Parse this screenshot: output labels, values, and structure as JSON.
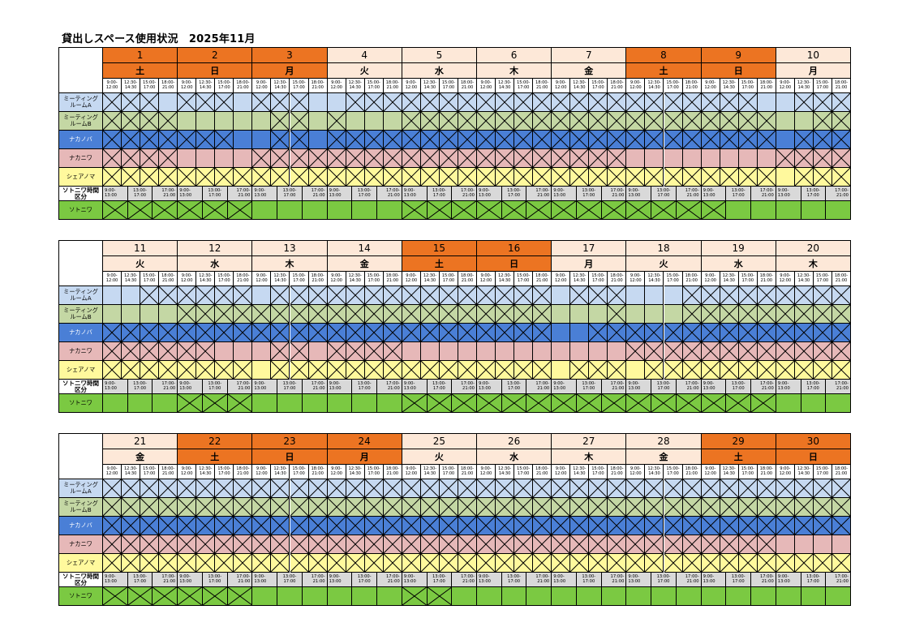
{
  "title": "貸出しスペース使用状況　2025年11月",
  "time_slots": [
    "9:00-\n12:00",
    "12:30-\n14:30",
    "15:00-\n17:00",
    "18:00-\n21:00"
  ],
  "sotoniwa_slots": [
    "9:00-\n13:00",
    "13:00-\n17:00",
    "17:00-\n21:00"
  ],
  "rooms": [
    {
      "id": "ma",
      "label": "ミーティング\nルームA",
      "color": "#c6d9f1",
      "slots": 4
    },
    {
      "id": "mb",
      "label": "ミーティング\nルームB",
      "color": "#c4d7a4",
      "slots": 4
    },
    {
      "id": "nakanoba",
      "label": "ナカノバ",
      "color": "#4a7fd6",
      "slots": 4
    },
    {
      "id": "nakaniwa",
      "label": "ナカニワ",
      "color": "#e6b8b8",
      "slots": 4
    },
    {
      "id": "sheanoma",
      "label": "シェアノマ",
      "color": "#fff99d",
      "slots": 4
    },
    {
      "id": "sotoniwa",
      "label": "ソトニワ",
      "color": "#7bc942",
      "slots": 3
    }
  ],
  "sotoniwa_header_label": "ソトニワ時間\n区分",
  "colors": {
    "weekday": "#fde8d8",
    "weekend": "#ec7422",
    "slot_bg": "#ffffff",
    "sotoniwa_slot_bg": "#d9d9d9",
    "border": "#000000"
  },
  "days": [
    {
      "day": "1",
      "dow": "土",
      "holiday": true,
      "booked": {
        "ma": [
          1,
          1,
          1,
          0
        ],
        "mb": [
          1,
          1,
          1,
          1
        ],
        "nakanoba": [
          1,
          1,
          1,
          1
        ],
        "nakaniwa": [
          1,
          1,
          1,
          1
        ],
        "sheanoma": [
          1,
          1,
          1,
          1
        ],
        "sotoniwa": [
          1,
          1,
          1
        ]
      }
    },
    {
      "day": "2",
      "dow": "日",
      "holiday": true,
      "booked": {
        "ma": [
          1,
          1,
          1,
          0
        ],
        "mb": [
          0,
          0,
          0,
          0
        ],
        "nakanoba": [
          1,
          1,
          1,
          0
        ],
        "nakaniwa": [
          0,
          0,
          0,
          0
        ],
        "sheanoma": [
          1,
          1,
          1,
          1
        ],
        "sotoniwa": [
          1,
          1,
          1
        ]
      }
    },
    {
      "day": "3",
      "dow": "月",
      "holiday": true,
      "booked": {
        "ma": [
          1,
          1,
          1,
          0
        ],
        "mb": [
          0,
          1,
          1,
          0
        ],
        "nakanoba": [
          0,
          1,
          1,
          0
        ],
        "nakaniwa": [
          1,
          1,
          1,
          1
        ],
        "sheanoma": [
          1,
          1,
          1,
          1
        ],
        "sotoniwa": [
          0,
          0,
          0
        ]
      }
    },
    {
      "day": "4",
      "dow": "火",
      "holiday": false,
      "booked": {
        "ma": [
          0,
          1,
          1,
          1
        ],
        "mb": [
          1,
          0,
          0,
          0
        ],
        "nakanoba": [
          1,
          1,
          1,
          1
        ],
        "nakaniwa": [
          1,
          1,
          1,
          1
        ],
        "sheanoma": [
          1,
          1,
          1,
          1
        ],
        "sotoniwa": [
          0,
          0,
          0
        ]
      }
    },
    {
      "day": "5",
      "dow": "水",
      "holiday": false,
      "booked": {
        "ma": [
          1,
          1,
          1,
          1
        ],
        "mb": [
          1,
          1,
          1,
          1
        ],
        "nakanoba": [
          1,
          1,
          1,
          1
        ],
        "nakaniwa": [
          1,
          1,
          1,
          1
        ],
        "sheanoma": [
          1,
          1,
          1,
          1
        ],
        "sotoniwa": [
          1,
          1,
          1
        ]
      }
    },
    {
      "day": "6",
      "dow": "木",
      "holiday": false,
      "booked": {
        "ma": [
          1,
          1,
          1,
          1
        ],
        "mb": [
          1,
          1,
          1,
          1
        ],
        "nakanoba": [
          1,
          1,
          1,
          1
        ],
        "nakaniwa": [
          1,
          1,
          1,
          1
        ],
        "sheanoma": [
          1,
          1,
          1,
          1
        ],
        "sotoniwa": [
          1,
          1,
          1
        ]
      }
    },
    {
      "day": "7",
      "dow": "金",
      "holiday": false,
      "booked": {
        "ma": [
          1,
          1,
          1,
          1
        ],
        "mb": [
          1,
          1,
          1,
          1
        ],
        "nakanoba": [
          1,
          1,
          1,
          1
        ],
        "nakaniwa": [
          1,
          1,
          1,
          1
        ],
        "sheanoma": [
          1,
          1,
          1,
          1
        ],
        "sotoniwa": [
          1,
          1,
          1
        ]
      }
    },
    {
      "day": "8",
      "dow": "土",
      "holiday": true,
      "booked": {
        "ma": [
          1,
          1,
          1,
          1
        ],
        "mb": [
          1,
          1,
          1,
          1
        ],
        "nakanoba": [
          1,
          1,
          1,
          1
        ],
        "nakaniwa": [
          0,
          0,
          0,
          0
        ],
        "sheanoma": [
          1,
          1,
          1,
          1
        ],
        "sotoniwa": [
          1,
          1,
          1
        ]
      }
    },
    {
      "day": "9",
      "dow": "日",
      "holiday": true,
      "booked": {
        "ma": [
          1,
          1,
          1,
          0
        ],
        "mb": [
          1,
          1,
          1,
          1
        ],
        "nakanoba": [
          1,
          1,
          1,
          1
        ],
        "nakaniwa": [
          0,
          0,
          0,
          0
        ],
        "sheanoma": [
          1,
          1,
          1,
          1
        ],
        "sotoniwa": [
          1,
          0,
          0
        ]
      }
    },
    {
      "day": "10",
      "dow": "月",
      "holiday": false,
      "booked": {
        "ma": [
          0,
          1,
          1,
          1
        ],
        "mb": [
          0,
          0,
          1,
          1
        ],
        "nakanoba": [
          0,
          1,
          1,
          1
        ],
        "nakaniwa": [
          1,
          1,
          1,
          1
        ],
        "sheanoma": [
          0,
          1,
          1,
          1
        ],
        "sotoniwa": [
          0,
          0,
          0
        ]
      }
    },
    {
      "day": "11",
      "dow": "火",
      "holiday": false,
      "booked": {
        "ma": [
          0,
          0,
          1,
          1
        ],
        "mb": [
          0,
          0,
          0,
          0
        ],
        "nakanoba": [
          1,
          1,
          1,
          1
        ],
        "nakaniwa": [
          1,
          1,
          1,
          1
        ],
        "sheanoma": [
          1,
          1,
          1,
          1
        ],
        "sotoniwa": [
          0,
          0,
          0
        ]
      }
    },
    {
      "day": "12",
      "dow": "水",
      "holiday": false,
      "booked": {
        "ma": [
          1,
          1,
          1,
          1
        ],
        "mb": [
          1,
          1,
          1,
          1
        ],
        "nakanoba": [
          1,
          1,
          1,
          1
        ],
        "nakaniwa": [
          1,
          1,
          0,
          0
        ],
        "sheanoma": [
          1,
          1,
          1,
          1
        ],
        "sotoniwa": [
          1,
          1,
          1
        ]
      }
    },
    {
      "day": "13",
      "dow": "木",
      "holiday": false,
      "booked": {
        "ma": [
          0,
          1,
          1,
          1
        ],
        "mb": [
          1,
          1,
          1,
          1
        ],
        "nakanoba": [
          1,
          1,
          1,
          1
        ],
        "nakaniwa": [
          0,
          1,
          1,
          0
        ],
        "sheanoma": [
          0,
          1,
          1,
          1
        ],
        "sotoniwa": [
          0,
          0,
          0
        ]
      }
    },
    {
      "day": "14",
      "dow": "金",
      "holiday": false,
      "booked": {
        "ma": [
          1,
          1,
          1,
          1
        ],
        "mb": [
          1,
          1,
          1,
          1
        ],
        "nakanoba": [
          1,
          1,
          1,
          1
        ],
        "nakaniwa": [
          1,
          1,
          1,
          1
        ],
        "sheanoma": [
          1,
          1,
          1,
          1
        ],
        "sotoniwa": [
          0,
          0,
          0
        ]
      }
    },
    {
      "day": "15",
      "dow": "土",
      "holiday": true,
      "booked": {
        "ma": [
          1,
          1,
          1,
          1
        ],
        "mb": [
          1,
          1,
          1,
          1
        ],
        "nakanoba": [
          1,
          1,
          1,
          1
        ],
        "nakaniwa": [
          0,
          0,
          0,
          0
        ],
        "sheanoma": [
          1,
          1,
          1,
          1
        ],
        "sotoniwa": [
          1,
          1,
          1
        ]
      }
    },
    {
      "day": "16",
      "dow": "日",
      "holiday": true,
      "booked": {
        "ma": [
          1,
          1,
          1,
          1
        ],
        "mb": [
          1,
          1,
          1,
          1
        ],
        "nakanoba": [
          1,
          1,
          1,
          1
        ],
        "nakaniwa": [
          0,
          0,
          0,
          0
        ],
        "sheanoma": [
          1,
          1,
          1,
          1
        ],
        "sotoniwa": [
          1,
          1,
          1
        ]
      }
    },
    {
      "day": "17",
      "dow": "月",
      "holiday": false,
      "booked": {
        "ma": [
          0,
          1,
          1,
          1
        ],
        "mb": [
          0,
          0,
          0,
          1
        ],
        "nakanoba": [
          0,
          0,
          1,
          1
        ],
        "nakaniwa": [
          0,
          0,
          0,
          0
        ],
        "sheanoma": [
          0,
          1,
          1,
          1
        ],
        "sotoniwa": [
          1,
          1,
          1
        ]
      }
    },
    {
      "day": "18",
      "dow": "火",
      "holiday": false,
      "booked": {
        "ma": [
          0,
          0,
          0,
          1
        ],
        "mb": [
          0,
          0,
          0,
          1
        ],
        "nakanoba": [
          1,
          1,
          1,
          1
        ],
        "nakaniwa": [
          1,
          1,
          1,
          1
        ],
        "sheanoma": [
          0,
          1,
          1,
          1
        ],
        "sotoniwa": [
          1,
          1,
          1
        ]
      }
    },
    {
      "day": "19",
      "dow": "水",
      "holiday": false,
      "booked": {
        "ma": [
          1,
          1,
          1,
          1
        ],
        "mb": [
          1,
          1,
          1,
          1
        ],
        "nakanoba": [
          1,
          1,
          1,
          1
        ],
        "nakaniwa": [
          1,
          1,
          1,
          1
        ],
        "sheanoma": [
          1,
          1,
          1,
          1
        ],
        "sotoniwa": [
          1,
          1,
          1
        ]
      }
    },
    {
      "day": "20",
      "dow": "木",
      "holiday": false,
      "booked": {
        "ma": [
          1,
          1,
          1,
          1
        ],
        "mb": [
          1,
          1,
          1,
          1
        ],
        "nakanoba": [
          1,
          1,
          1,
          1
        ],
        "nakaniwa": [
          1,
          1,
          1,
          1
        ],
        "sheanoma": [
          1,
          1,
          1,
          1
        ],
        "sotoniwa": [
          0,
          0,
          0
        ]
      }
    },
    {
      "day": "21",
      "dow": "金",
      "holiday": false,
      "booked": {
        "ma": [
          1,
          1,
          1,
          1
        ],
        "mb": [
          1,
          1,
          1,
          1
        ],
        "nakanoba": [
          1,
          1,
          1,
          1
        ],
        "nakaniwa": [
          1,
          1,
          1,
          1
        ],
        "sheanoma": [
          1,
          1,
          1,
          1
        ],
        "sotoniwa": [
          1,
          1,
          1
        ]
      }
    },
    {
      "day": "22",
      "dow": "土",
      "holiday": true,
      "booked": {
        "ma": [
          1,
          1,
          1,
          1
        ],
        "mb": [
          1,
          1,
          1,
          1
        ],
        "nakanoba": [
          1,
          1,
          1,
          1
        ],
        "nakaniwa": [
          1,
          1,
          1,
          1
        ],
        "sheanoma": [
          1,
          1,
          1,
          1
        ],
        "sotoniwa": [
          1,
          1,
          1
        ]
      }
    },
    {
      "day": "23",
      "dow": "日",
      "holiday": true,
      "booked": {
        "ma": [
          1,
          1,
          1,
          1
        ],
        "mb": [
          1,
          1,
          1,
          1
        ],
        "nakanoba": [
          1,
          1,
          1,
          1
        ],
        "nakaniwa": [
          1,
          1,
          1,
          1
        ],
        "sheanoma": [
          1,
          1,
          1,
          1
        ],
        "sotoniwa": [
          0,
          0,
          0
        ]
      }
    },
    {
      "day": "24",
      "dow": "月",
      "holiday": true,
      "booked": {
        "ma": [
          1,
          1,
          1,
          1
        ],
        "mb": [
          1,
          1,
          1,
          1
        ],
        "nakanoba": [
          1,
          1,
          1,
          1
        ],
        "nakaniwa": [
          1,
          1,
          1,
          1
        ],
        "sheanoma": [
          1,
          1,
          1,
          1
        ],
        "sotoniwa": [
          0,
          0,
          0
        ]
      }
    },
    {
      "day": "25",
      "dow": "火",
      "holiday": false,
      "booked": {
        "ma": [
          1,
          1,
          1,
          1
        ],
        "mb": [
          1,
          1,
          1,
          1
        ],
        "nakanoba": [
          1,
          1,
          1,
          1
        ],
        "nakaniwa": [
          1,
          1,
          1,
          1
        ],
        "sheanoma": [
          1,
          1,
          1,
          1
        ],
        "sotoniwa": [
          1,
          1,
          0
        ]
      }
    },
    {
      "day": "26",
      "dow": "水",
      "holiday": false,
      "booked": {
        "ma": [
          1,
          1,
          1,
          1
        ],
        "mb": [
          1,
          1,
          1,
          1
        ],
        "nakanoba": [
          1,
          1,
          1,
          1
        ],
        "nakaniwa": [
          1,
          1,
          1,
          1
        ],
        "sheanoma": [
          1,
          1,
          1,
          1
        ],
        "sotoniwa": [
          0,
          0,
          0
        ]
      }
    },
    {
      "day": "27",
      "dow": "木",
      "holiday": false,
      "booked": {
        "ma": [
          1,
          1,
          1,
          1
        ],
        "mb": [
          1,
          1,
          1,
          1
        ],
        "nakanoba": [
          1,
          1,
          1,
          1
        ],
        "nakaniwa": [
          1,
          1,
          1,
          1
        ],
        "sheanoma": [
          1,
          1,
          1,
          1
        ],
        "sotoniwa": [
          0,
          0,
          0
        ]
      }
    },
    {
      "day": "28",
      "dow": "金",
      "holiday": false,
      "booked": {
        "ma": [
          1,
          1,
          1,
          1
        ],
        "mb": [
          1,
          1,
          1,
          1
        ],
        "nakanoba": [
          1,
          1,
          1,
          1
        ],
        "nakaniwa": [
          1,
          1,
          1,
          1
        ],
        "sheanoma": [
          1,
          1,
          1,
          1
        ],
        "sotoniwa": [
          0,
          0,
          0
        ]
      }
    },
    {
      "day": "29",
      "dow": "土",
      "holiday": true,
      "booked": {
        "ma": [
          1,
          1,
          1,
          1
        ],
        "mb": [
          1,
          1,
          1,
          1
        ],
        "nakanoba": [
          1,
          1,
          1,
          1
        ],
        "nakaniwa": [
          1,
          1,
          1,
          1
        ],
        "sheanoma": [
          1,
          1,
          1,
          1
        ],
        "sotoniwa": [
          0,
          0,
          0
        ]
      }
    },
    {
      "day": "30",
      "dow": "日",
      "holiday": true,
      "booked": {
        "ma": [
          1,
          1,
          1,
          1
        ],
        "mb": [
          1,
          1,
          1,
          1
        ],
        "nakanoba": [
          1,
          1,
          1,
          1
        ],
        "nakaniwa": [
          0,
          0,
          0,
          0
        ],
        "sheanoma": [
          1,
          1,
          1,
          1
        ],
        "sotoniwa": [
          0,
          0,
          0
        ]
      }
    }
  ]
}
